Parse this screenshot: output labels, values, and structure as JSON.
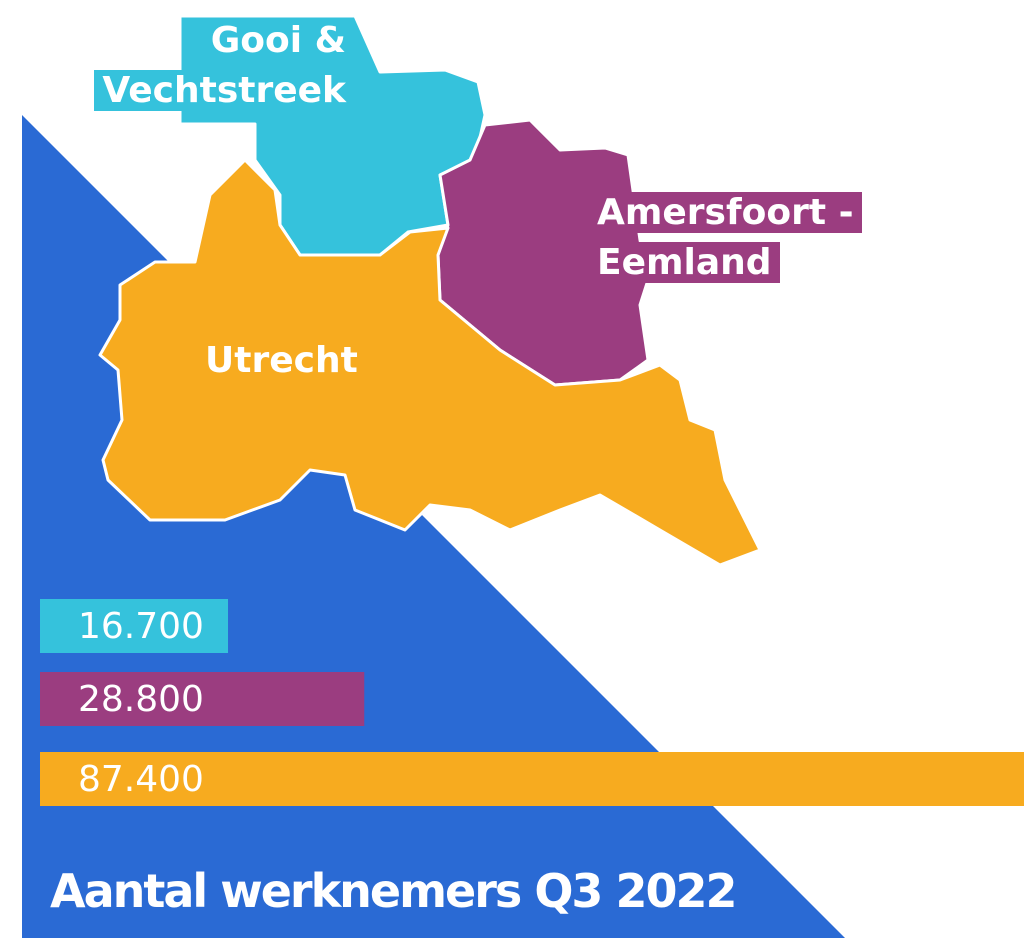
{
  "chart_data": {
    "type": "bar",
    "orientation": "horizontal",
    "title": "Aantal werknemers Q3 2022",
    "categories": [
      "Gooi & Vechtstreek",
      "Amersfoort - Eemland",
      "Utrecht"
    ],
    "values": [
      16700,
      28800,
      87400
    ],
    "value_labels": [
      "16.700",
      "28.800",
      "87.400"
    ],
    "colors": [
      "#35c2dc",
      "#9b3d80",
      "#f7ab1f"
    ],
    "background_color": "#2a6ad4"
  }
}
